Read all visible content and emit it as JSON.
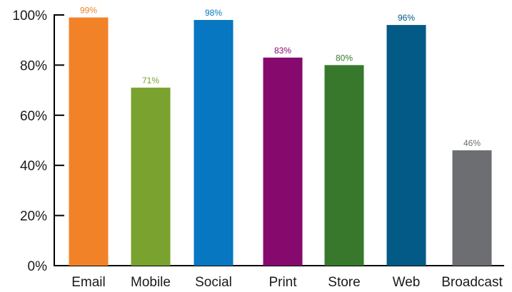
{
  "chart_data": {
    "type": "bar",
    "categories": [
      "Email",
      "Mobile",
      "Social",
      "Print",
      "Store",
      "Web",
      "Broadcast"
    ],
    "values": [
      99,
      71,
      98,
      83,
      80,
      96,
      46
    ],
    "data_labels": [
      "99%",
      "71%",
      "98%",
      "83%",
      "80%",
      "96%",
      "46%"
    ],
    "colors": [
      "#f28228",
      "#79a22e",
      "#0677c0",
      "#860a6d",
      "#37782d",
      "#045a86",
      "#6d6e71"
    ],
    "y_ticks": [
      {
        "value": 0,
        "label": "0%"
      },
      {
        "value": 20,
        "label": "20%"
      },
      {
        "value": 40,
        "label": "40%"
      },
      {
        "value": 60,
        "label": "60%"
      },
      {
        "value": 80,
        "label": "80%"
      },
      {
        "value": 100,
        "label": "100%"
      }
    ],
    "ylim": [
      0,
      100
    ],
    "grid": false,
    "title": "",
    "xlabel": "",
    "ylabel": ""
  }
}
